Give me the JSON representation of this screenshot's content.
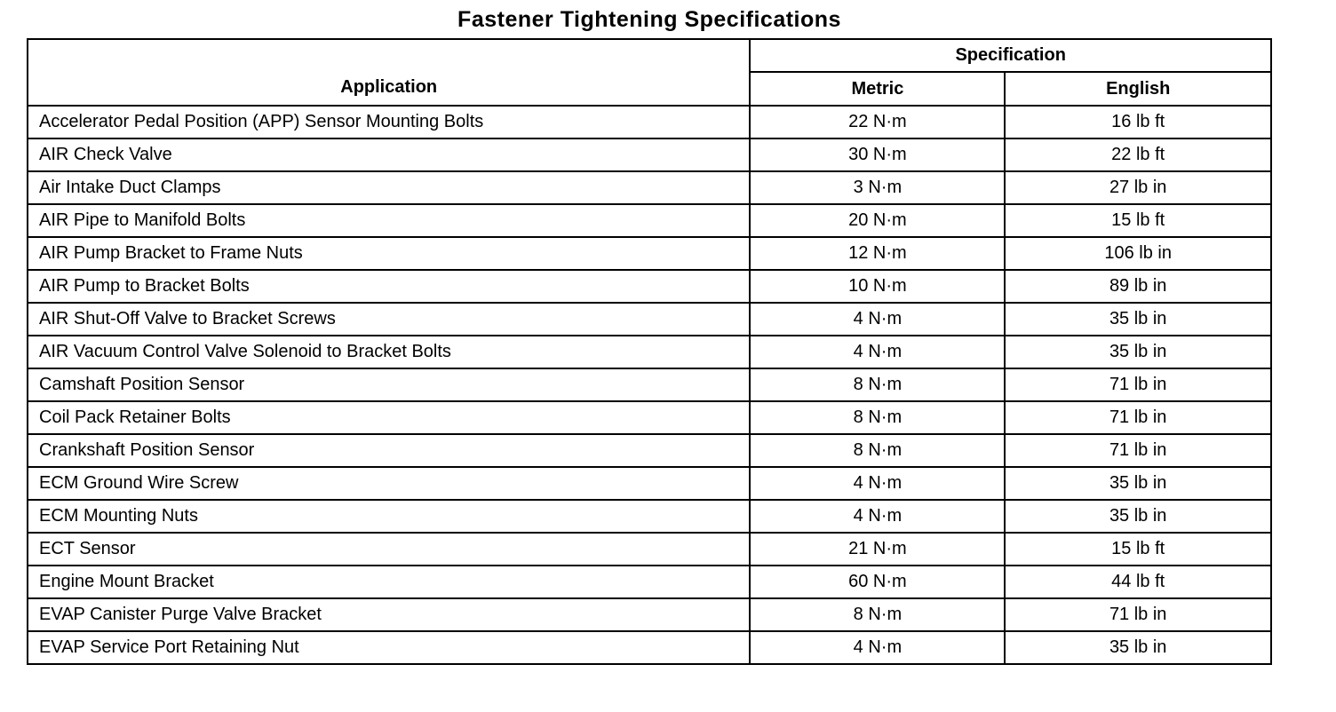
{
  "title": "Fastener Tightening Specifications",
  "table": {
    "headers": {
      "application": "Application",
      "specification": "Specification",
      "metric": "Metric",
      "english": "English"
    },
    "rows": [
      {
        "application": "Accelerator Pedal Position (APP) Sensor Mounting Bolts",
        "metric": "22 N·m",
        "english": "16 lb ft"
      },
      {
        "application": "AIR Check Valve",
        "metric": "30 N·m",
        "english": "22 lb ft"
      },
      {
        "application": "Air Intake Duct Clamps",
        "metric": "3 N·m",
        "english": "27 lb in"
      },
      {
        "application": "AIR Pipe to Manifold Bolts",
        "metric": "20 N·m",
        "english": "15 lb ft"
      },
      {
        "application": "AIR Pump Bracket to Frame Nuts",
        "metric": "12 N·m",
        "english": "106 lb in"
      },
      {
        "application": "AIR Pump to Bracket Bolts",
        "metric": "10 N·m",
        "english": "89 lb in"
      },
      {
        "application": "AIR Shut-Off Valve to Bracket Screws",
        "metric": "4 N·m",
        "english": "35 lb in"
      },
      {
        "application": "AIR Vacuum Control Valve Solenoid to Bracket Bolts",
        "metric": "4 N·m",
        "english": "35 lb in"
      },
      {
        "application": "Camshaft Position Sensor",
        "metric": "8 N·m",
        "english": "71 lb in"
      },
      {
        "application": "Coil Pack Retainer Bolts",
        "metric": "8 N·m",
        "english": "71 lb in"
      },
      {
        "application": "Crankshaft Position Sensor",
        "metric": "8 N·m",
        "english": "71 lb in"
      },
      {
        "application": "ECM Ground Wire Screw",
        "metric": "4 N·m",
        "english": "35 lb in"
      },
      {
        "application": "ECM Mounting Nuts",
        "metric": "4 N·m",
        "english": "35 lb in"
      },
      {
        "application": "ECT Sensor",
        "metric": "21 N·m",
        "english": "15 lb ft"
      },
      {
        "application": "Engine Mount Bracket",
        "metric": "60 N·m",
        "english": "44 lb ft"
      },
      {
        "application": "EVAP Canister Purge Valve Bracket",
        "metric": "8 N·m",
        "english": "71 lb in"
      },
      {
        "application": "EVAP Service Port Retaining Nut",
        "metric": "4 N·m",
        "english": "35 lb in"
      }
    ]
  },
  "colors": {
    "ink": "#000000",
    "paper": "#ffffff"
  }
}
